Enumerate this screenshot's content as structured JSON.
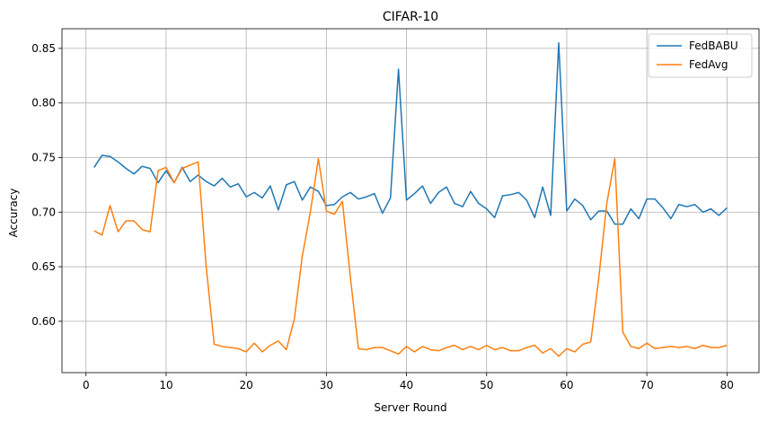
{
  "chart_data": {
    "type": "line",
    "title": "CIFAR-10",
    "xlabel": "Server Round",
    "ylabel": "Accuracy",
    "xlim": [
      -3,
      84
    ],
    "ylim": [
      0.553,
      0.868
    ],
    "xticks": [
      0,
      10,
      20,
      30,
      40,
      50,
      60,
      70,
      80
    ],
    "yticks": [
      0.6,
      0.65,
      0.7,
      0.75,
      0.8,
      0.85
    ],
    "ytick_labels": [
      "0.60",
      "0.65",
      "0.70",
      "0.75",
      "0.80",
      "0.85"
    ],
    "grid": true,
    "legend_position": "top-right",
    "x": [
      1,
      2,
      3,
      4,
      5,
      6,
      7,
      8,
      9,
      10,
      11,
      12,
      13,
      14,
      15,
      16,
      17,
      18,
      19,
      20,
      21,
      22,
      23,
      24,
      25,
      26,
      27,
      28,
      29,
      30,
      31,
      32,
      33,
      34,
      35,
      36,
      37,
      38,
      39,
      40,
      41,
      42,
      43,
      44,
      45,
      46,
      47,
      48,
      49,
      50,
      51,
      52,
      53,
      54,
      55,
      56,
      57,
      58,
      59,
      60,
      61,
      62,
      63,
      64,
      65,
      66,
      67,
      68,
      69,
      70,
      71,
      72,
      73,
      74,
      75,
      76,
      77,
      78,
      79,
      80
    ],
    "series": [
      {
        "name": "FedBABU",
        "color": "#1f77b4",
        "values": [
          0.741,
          0.752,
          0.751,
          0.746,
          0.74,
          0.735,
          0.742,
          0.74,
          0.727,
          0.738,
          0.727,
          0.741,
          0.728,
          0.734,
          0.728,
          0.724,
          0.731,
          0.723,
          0.726,
          0.714,
          0.718,
          0.713,
          0.724,
          0.702,
          0.725,
          0.728,
          0.711,
          0.723,
          0.719,
          0.706,
          0.707,
          0.714,
          0.718,
          0.712,
          0.714,
          0.717,
          0.699,
          0.713,
          0.831,
          0.711,
          0.717,
          0.724,
          0.708,
          0.718,
          0.723,
          0.708,
          0.705,
          0.719,
          0.708,
          0.703,
          0.695,
          0.715,
          0.716,
          0.718,
          0.711,
          0.695,
          0.723,
          0.697,
          0.855,
          0.701,
          0.712,
          0.706,
          0.693,
          0.701,
          0.701,
          0.689,
          0.689,
          0.703,
          0.694,
          0.712,
          0.712,
          0.704,
          0.694,
          0.707,
          0.705,
          0.707,
          0.7,
          0.703,
          0.697,
          0.704
        ]
      },
      {
        "name": "FedAvg",
        "color": "#ff7f0e",
        "values": [
          0.683,
          0.679,
          0.706,
          0.682,
          0.692,
          0.692,
          0.684,
          0.682,
          0.738,
          0.741,
          0.727,
          0.74,
          0.743,
          0.746,
          0.65,
          0.579,
          0.577,
          0.576,
          0.575,
          0.572,
          0.58,
          0.572,
          0.578,
          0.582,
          0.574,
          0.602,
          0.66,
          0.7,
          0.749,
          0.701,
          0.698,
          0.71,
          0.64,
          0.575,
          0.574,
          0.576,
          0.576,
          0.573,
          0.57,
          0.577,
          0.572,
          0.577,
          0.574,
          0.573,
          0.576,
          0.578,
          0.574,
          0.577,
          0.574,
          0.578,
          0.574,
          0.576,
          0.573,
          0.573,
          0.576,
          0.578,
          0.571,
          0.575,
          0.568,
          0.575,
          0.572,
          0.579,
          0.581,
          0.64,
          0.708,
          0.749,
          0.59,
          0.577,
          0.575,
          0.58,
          0.575,
          0.576,
          0.577,
          0.576,
          0.577,
          0.575,
          0.578,
          0.576,
          0.576,
          0.578
        ]
      }
    ]
  }
}
